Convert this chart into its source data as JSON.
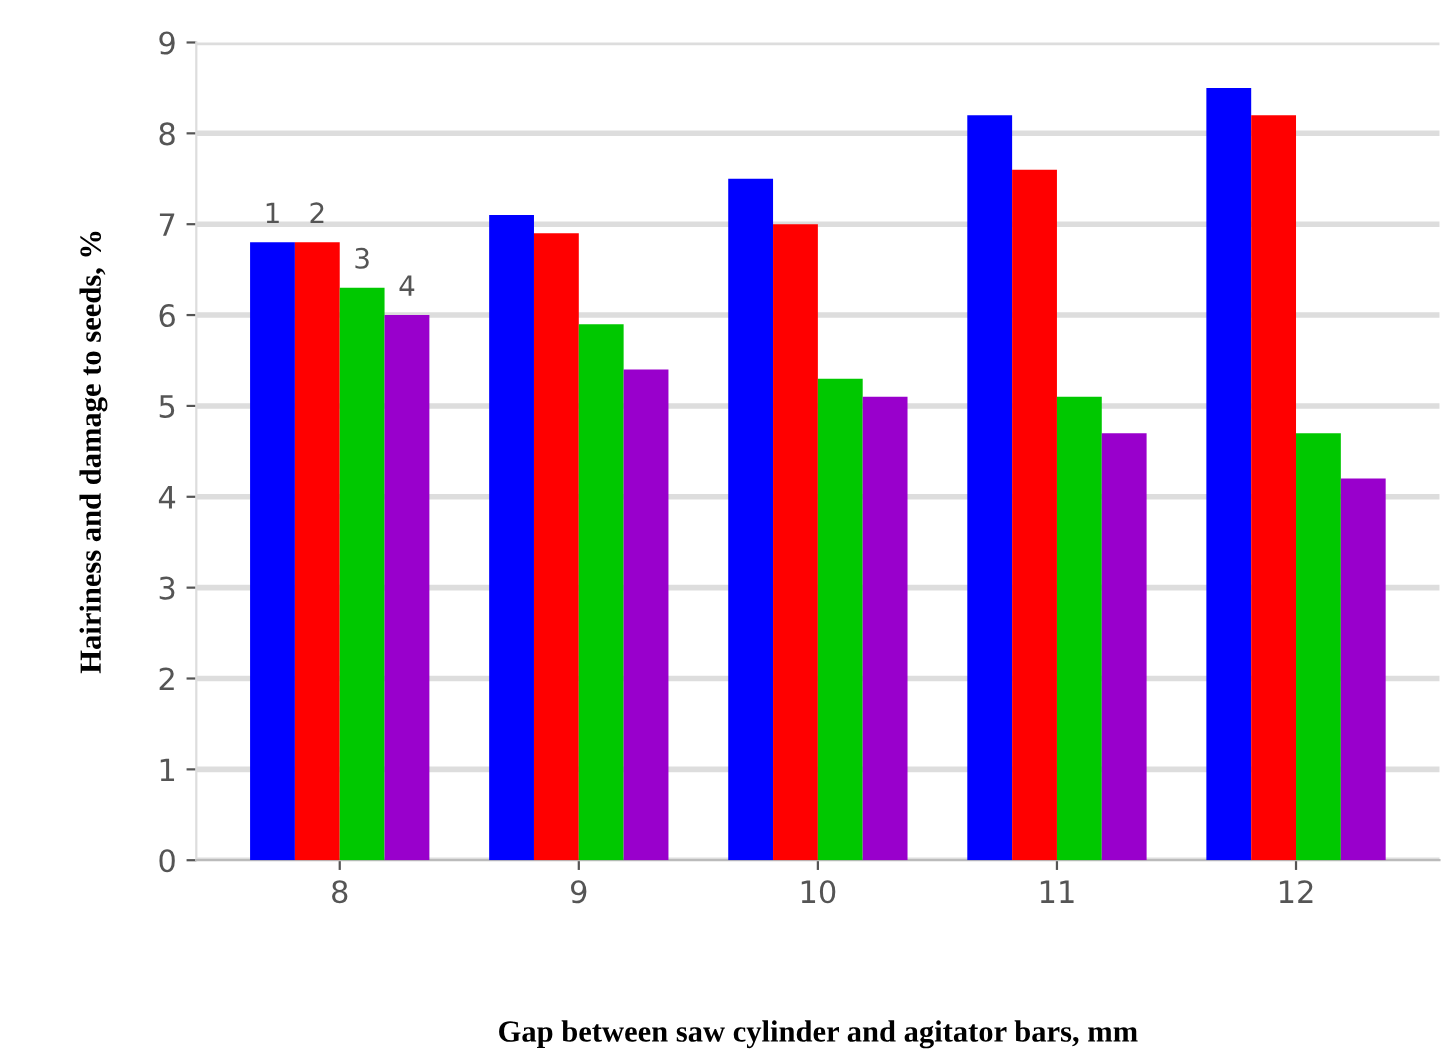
{
  "chart_data": {
    "type": "bar",
    "xlabel": "Gap between saw cylinder and agitator bars, mm",
    "ylabel": "Hairiness and damage to seeds, %",
    "categories": [
      "8",
      "9",
      "10",
      "11",
      "12"
    ],
    "series": [
      {
        "name": "1",
        "color": "#0000ff",
        "values": [
          6.8,
          7.1,
          7.5,
          8.2,
          8.5
        ]
      },
      {
        "name": "2",
        "color": "#ff0000",
        "values": [
          6.8,
          6.9,
          7.0,
          7.6,
          8.2
        ]
      },
      {
        "name": "3",
        "color": "#00c800",
        "values": [
          6.3,
          5.9,
          5.3,
          5.1,
          4.7
        ]
      },
      {
        "name": "4",
        "color": "#9900cc",
        "values": [
          6.0,
          5.4,
          5.1,
          4.7,
          4.2
        ]
      }
    ],
    "ylim": [
      0,
      9
    ],
    "yticks": [
      0,
      1,
      2,
      3,
      4,
      5,
      6,
      7,
      8,
      9
    ],
    "grid": "y",
    "legend": false
  }
}
